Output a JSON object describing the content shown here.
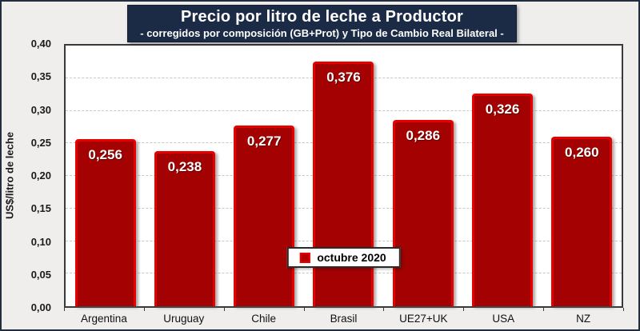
{
  "chart_data": {
    "type": "bar",
    "title": "Precio por litro de leche a Productor",
    "subtitle": "-  corregidos por composición (GB+Prot) y Tipo de Cambio Real Bilateral -",
    "ylabel": "US$/litro de leche",
    "xlabel": "",
    "categories": [
      "Argentina",
      "Uruguay",
      "Chile",
      "Brasil",
      "UE27+UK",
      "USA",
      "NZ"
    ],
    "values": [
      0.256,
      0.238,
      0.277,
      0.376,
      0.286,
      0.326,
      0.26
    ],
    "value_labels": [
      "0,256",
      "0,238",
      "0,277",
      "0,376",
      "0,286",
      "0,326",
      "0,260"
    ],
    "ylim": [
      0,
      0.4
    ],
    "ytick_step": 0.05,
    "yticks": [
      0,
      0.05,
      0.1,
      0.15,
      0.2,
      0.25,
      0.3,
      0.35,
      0.4
    ],
    "ytick_labels": [
      "0,00",
      "0,05",
      "0,10",
      "0,15",
      "0,20",
      "0,25",
      "0,30",
      "0,35",
      "0,40"
    ],
    "grid": "horizontal-dashed",
    "legend": {
      "label": "octubre 2020",
      "position": "inside-bottom-center"
    },
    "colors": {
      "bar_fill": "#a40202",
      "bar_border": "#e60000",
      "title_background": "#1b2b45",
      "title_text": "#ffffff",
      "plot_background": "#ffffff",
      "outer_background": "#efeeec",
      "gridline": "#c7c7c7",
      "legend_marker": "#e60000"
    }
  }
}
